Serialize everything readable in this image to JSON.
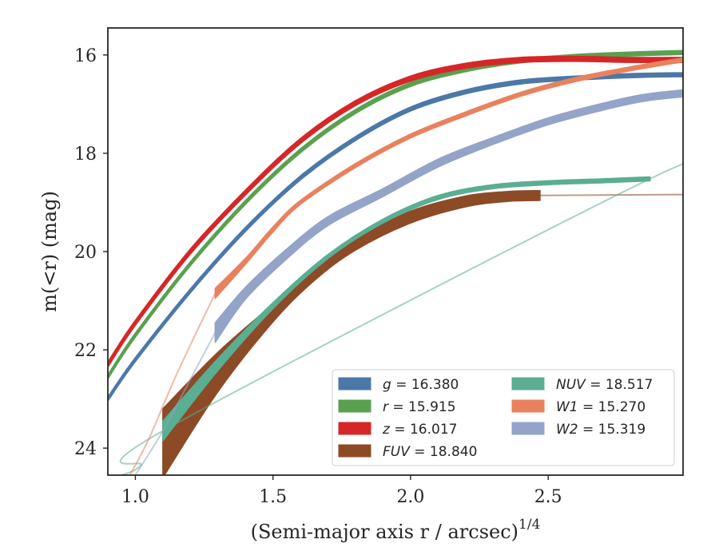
{
  "chart_data": {
    "type": "line",
    "xlabel": "(Semi-major axis r / arcsec)",
    "xlabel_superscript": "1/4",
    "ylabel": "m(<r) (mag)",
    "xlim": [
      0.9,
      2.99
    ],
    "ylim": [
      24.55,
      15.45
    ],
    "y_inverted": true,
    "x_ticks": [
      1.0,
      1.5,
      2.0,
      2.5
    ],
    "x_tick_labels": [
      "1.0",
      "1.5",
      "2.0",
      "2.5"
    ],
    "y_ticks": [
      16,
      18,
      20,
      22,
      24
    ],
    "y_tick_labels": [
      "16",
      "18",
      "20",
      "22",
      "24"
    ],
    "grid": false,
    "legend_position": "bottom-right",
    "series": [
      {
        "name": "g",
        "label_value": "16.380",
        "color": "#4c78a8",
        "band": [
          [
            0.9,
            23.0,
            0.04
          ],
          [
            1.0,
            22.2,
            0.04
          ],
          [
            1.2,
            20.8,
            0.04
          ],
          [
            1.4,
            19.55,
            0.04
          ],
          [
            1.6,
            18.5,
            0.04
          ],
          [
            1.8,
            17.7,
            0.04
          ],
          [
            2.0,
            17.1,
            0.04
          ],
          [
            2.2,
            16.75,
            0.04
          ],
          [
            2.4,
            16.55,
            0.04
          ],
          [
            2.6,
            16.47,
            0.04
          ],
          [
            2.8,
            16.42,
            0.04
          ],
          [
            2.99,
            16.4,
            0.04
          ]
        ],
        "faint": []
      },
      {
        "name": "r",
        "label_value": "15.915",
        "color": "#59a14f",
        "band": [
          [
            0.9,
            22.55,
            0.04
          ],
          [
            1.0,
            21.7,
            0.04
          ],
          [
            1.2,
            20.25,
            0.04
          ],
          [
            1.4,
            19.0,
            0.04
          ],
          [
            1.6,
            17.95,
            0.04
          ],
          [
            1.8,
            17.15,
            0.04
          ],
          [
            2.0,
            16.6,
            0.04
          ],
          [
            2.2,
            16.3,
            0.04
          ],
          [
            2.4,
            16.12,
            0.04
          ],
          [
            2.6,
            16.03,
            0.04
          ],
          [
            2.8,
            15.98,
            0.04
          ],
          [
            2.99,
            15.95,
            0.04
          ]
        ],
        "faint": []
      },
      {
        "name": "z",
        "label_value": "16.017",
        "color": "#d62728",
        "band": [
          [
            0.9,
            22.3,
            0.05
          ],
          [
            1.0,
            21.45,
            0.05
          ],
          [
            1.2,
            20.0,
            0.05
          ],
          [
            1.4,
            18.8,
            0.05
          ],
          [
            1.6,
            17.75,
            0.05
          ],
          [
            1.8,
            16.98,
            0.05
          ],
          [
            2.0,
            16.48,
            0.05
          ],
          [
            2.2,
            16.22,
            0.05
          ],
          [
            2.4,
            16.1,
            0.05
          ],
          [
            2.6,
            16.08,
            0.05
          ],
          [
            2.8,
            16.1,
            0.05
          ],
          [
            2.99,
            16.1,
            0.05
          ]
        ],
        "faint": []
      },
      {
        "name": "FUV",
        "label_value": "18.840",
        "color": "#8c4a26",
        "band": [
          [
            1.1,
            23.9,
            0.7
          ],
          [
            1.3,
            22.45,
            0.4
          ],
          [
            1.5,
            21.25,
            0.18
          ],
          [
            1.65,
            20.45,
            0.14
          ],
          [
            1.8,
            19.85,
            0.12
          ],
          [
            2.0,
            19.3,
            0.12
          ],
          [
            2.2,
            18.98,
            0.11
          ],
          [
            2.35,
            18.88,
            0.1
          ],
          [
            2.47,
            18.86,
            0.1
          ]
        ],
        "faint": [
          [
            2.47,
            18.86
          ],
          [
            2.7,
            18.85
          ],
          [
            2.99,
            18.84
          ]
        ]
      },
      {
        "name": "NUV",
        "label_value": "18.517",
        "color": "#5aae92",
        "band": [
          [
            1.1,
            23.65,
            0.2
          ],
          [
            1.3,
            22.3,
            0.12
          ],
          [
            1.5,
            21.1,
            0.06
          ],
          [
            1.7,
            20.1,
            0.04
          ],
          [
            1.9,
            19.38,
            0.04
          ],
          [
            2.1,
            18.9,
            0.04
          ],
          [
            2.3,
            18.68,
            0.04
          ],
          [
            2.5,
            18.6,
            0.04
          ],
          [
            2.7,
            18.56,
            0.04
          ],
          [
            2.87,
            18.52,
            0.04
          ]
        ],
        "faint": [
          [
            0.95,
            24.55
          ],
          [
            1.02,
            24.35
          ],
          [
            1.1,
            23.65
          ],
          [
            2.87,
            18.52
          ],
          [
            2.99,
            18.52
          ]
        ]
      },
      {
        "name": "W1",
        "label_value": "15.270",
        "color": "#e8825e",
        "band": [
          [
            1.29,
            20.85,
            0.1
          ],
          [
            1.4,
            20.2,
            0.06
          ],
          [
            1.5,
            19.55,
            0.05
          ],
          [
            1.6,
            19.0,
            0.04
          ],
          [
            1.8,
            18.25,
            0.04
          ],
          [
            2.0,
            17.65,
            0.04
          ],
          [
            2.2,
            17.2,
            0.04
          ],
          [
            2.4,
            16.8,
            0.04
          ],
          [
            2.6,
            16.5,
            0.04
          ],
          [
            2.8,
            16.28,
            0.04
          ],
          [
            2.99,
            16.1,
            0.04
          ]
        ],
        "faint": [
          [
            0.98,
            24.55
          ],
          [
            1.05,
            23.8
          ],
          [
            1.15,
            22.5
          ],
          [
            1.29,
            20.85
          ]
        ]
      },
      {
        "name": "W2",
        "label_value": "15.319",
        "color": "#94a3c8",
        "band": [
          [
            1.29,
            21.65,
            0.2
          ],
          [
            1.4,
            20.85,
            0.12
          ],
          [
            1.55,
            20.05,
            0.1
          ],
          [
            1.7,
            19.38,
            0.09
          ],
          [
            1.9,
            18.8,
            0.08
          ],
          [
            2.1,
            18.2,
            0.08
          ],
          [
            2.3,
            17.75,
            0.07
          ],
          [
            2.5,
            17.35,
            0.07
          ],
          [
            2.7,
            17.05,
            0.07
          ],
          [
            2.85,
            16.87,
            0.07
          ],
          [
            2.99,
            16.78,
            0.07
          ]
        ],
        "faint": [
          [
            1.0,
            24.55
          ],
          [
            1.1,
            23.65
          ],
          [
            1.2,
            22.6
          ],
          [
            1.29,
            21.65
          ]
        ]
      }
    ]
  },
  "legend": {
    "items": [
      {
        "var": "g",
        "text": " = 16.380",
        "color": "#4c78a8"
      },
      {
        "var": "r",
        "text": " = 15.915",
        "color": "#59a14f"
      },
      {
        "var": "z",
        "text": " = 16.017",
        "color": "#d62728"
      },
      {
        "var": "FUV",
        "text": " = 18.840",
        "color": "#8c4a26"
      },
      {
        "var": "NUV",
        "text": " = 18.517",
        "color": "#5aae92"
      },
      {
        "var": "W1",
        "text": " = 15.270",
        "color": "#e8825e"
      },
      {
        "var": "W2",
        "text": " = 15.319",
        "color": "#94a3c8"
      }
    ]
  }
}
